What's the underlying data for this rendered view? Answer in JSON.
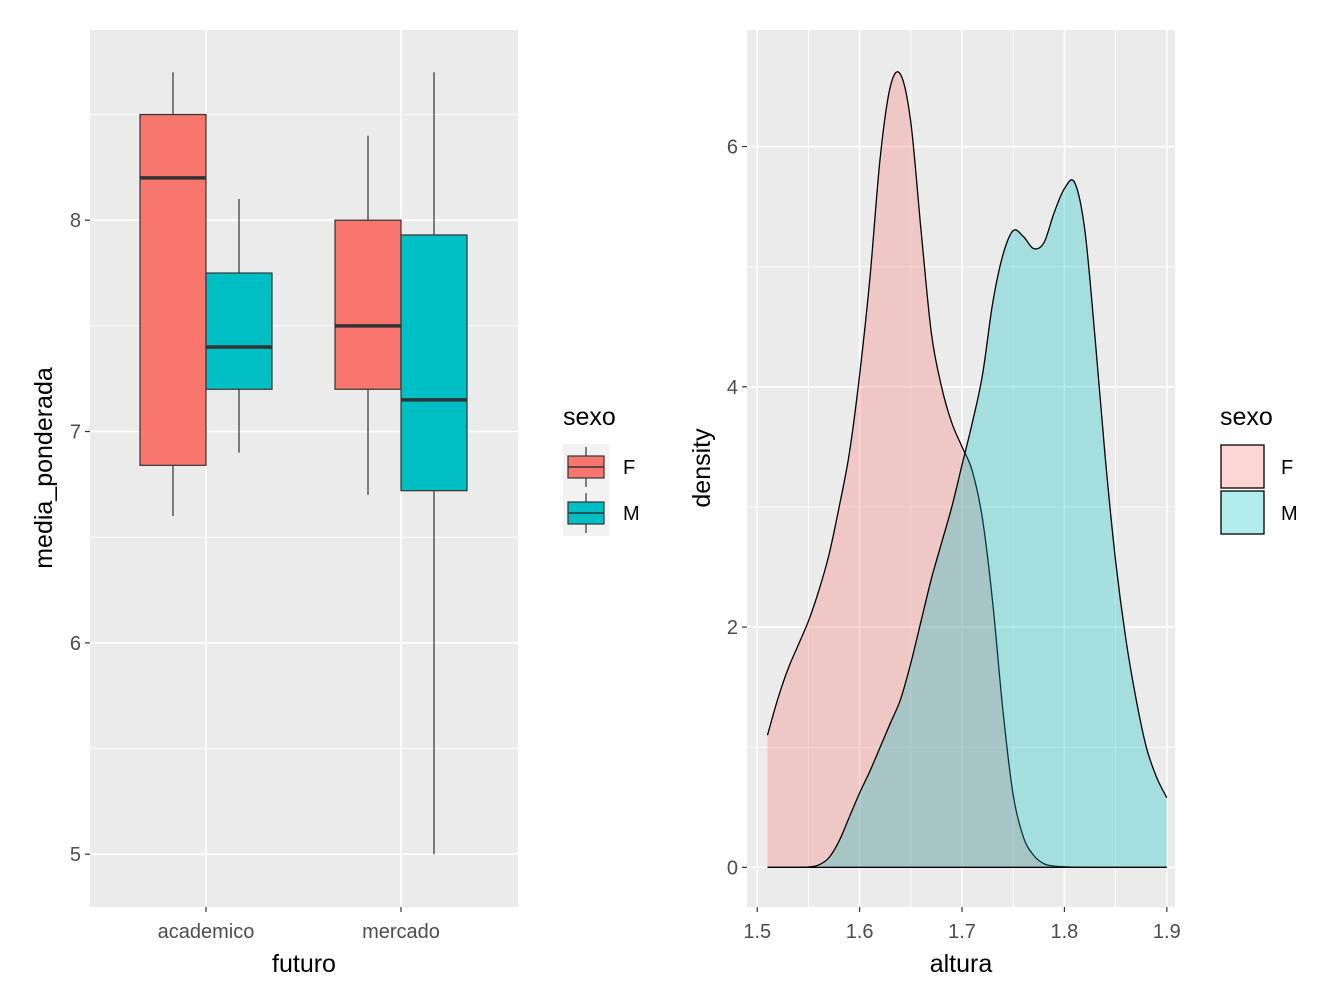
{
  "chart_data": [
    {
      "type": "boxplot",
      "xlabel": "futuro",
      "ylabel": "media_ponderada",
      "categories": [
        "academico",
        "mercado"
      ],
      "ylim": [
        4.75,
        8.9
      ],
      "yticks": [
        5,
        6,
        7,
        8
      ],
      "grid": true,
      "legend": {
        "title": "sexo",
        "position": "right",
        "entries": [
          "F",
          "M"
        ]
      },
      "colors": {
        "F": "#F8766D",
        "M": "#00BFC4"
      },
      "series": [
        {
          "name": "F",
          "boxes": [
            {
              "category": "academico",
              "lower_whisker": 6.6,
              "q1": 6.84,
              "median": 8.2,
              "q3": 8.5,
              "upper_whisker": 8.7
            },
            {
              "category": "mercado",
              "lower_whisker": 6.7,
              "q1": 7.2,
              "median": 7.5,
              "q3": 8.0,
              "upper_whisker": 8.4
            }
          ]
        },
        {
          "name": "M",
          "boxes": [
            {
              "category": "academico",
              "lower_whisker": 6.9,
              "q1": 7.2,
              "median": 7.4,
              "q3": 7.75,
              "upper_whisker": 8.1
            },
            {
              "category": "mercado",
              "lower_whisker": 5.0,
              "q1": 6.72,
              "median": 7.15,
              "q3": 7.93,
              "upper_whisker": 8.7
            }
          ]
        }
      ]
    },
    {
      "type": "area",
      "xlabel": "altura",
      "ylabel": "density",
      "xlim": [
        1.49,
        1.908
      ],
      "ylim": [
        -0.33,
        6.97
      ],
      "xticks": [
        "1.5",
        "1.6",
        "1.7",
        "1.8",
        "1.9"
      ],
      "xtick_values": [
        1.5,
        1.6,
        1.7,
        1.8,
        1.9
      ],
      "yticks": [
        0,
        2,
        4,
        6
      ],
      "grid": true,
      "legend": {
        "title": "sexo",
        "position": "right",
        "entries": [
          "F",
          "M"
        ]
      },
      "colors": {
        "F": "#F8766D",
        "M": "#00BFC4"
      },
      "fill_alpha": 0.3,
      "series": [
        {
          "name": "F",
          "x": [
            1.51,
            1.52,
            1.53,
            1.54,
            1.55,
            1.56,
            1.57,
            1.58,
            1.59,
            1.6,
            1.61,
            1.62,
            1.63,
            1.64,
            1.65,
            1.66,
            1.67,
            1.68,
            1.69,
            1.7,
            1.71,
            1.72,
            1.73,
            1.74,
            1.75,
            1.76,
            1.77,
            1.78,
            1.79,
            1.8,
            1.81,
            1.82,
            1.83,
            1.84,
            1.85,
            1.86,
            1.87,
            1.88,
            1.89,
            1.9
          ],
          "values": [
            1.1,
            1.4,
            1.65,
            1.85,
            2.05,
            2.3,
            2.6,
            3.0,
            3.45,
            4.1,
            4.9,
            5.9,
            6.5,
            6.6,
            6.2,
            5.3,
            4.45,
            4.0,
            3.7,
            3.5,
            3.3,
            2.9,
            2.2,
            1.3,
            0.6,
            0.25,
            0.1,
            0.03,
            0.01,
            0.005,
            0.002,
            0.001,
            0.0,
            0.0,
            0.0,
            0.0,
            0.0,
            0.0,
            0.0,
            0.0
          ]
        },
        {
          "name": "M",
          "x": [
            1.51,
            1.52,
            1.53,
            1.54,
            1.55,
            1.56,
            1.57,
            1.58,
            1.59,
            1.6,
            1.61,
            1.62,
            1.63,
            1.64,
            1.65,
            1.66,
            1.67,
            1.68,
            1.69,
            1.7,
            1.71,
            1.72,
            1.73,
            1.74,
            1.75,
            1.76,
            1.77,
            1.78,
            1.79,
            1.8,
            1.81,
            1.82,
            1.83,
            1.84,
            1.85,
            1.86,
            1.87,
            1.88,
            1.89,
            1.9
          ],
          "values": [
            0.0,
            0.0,
            0.0,
            0.0,
            0.003,
            0.02,
            0.08,
            0.22,
            0.42,
            0.62,
            0.8,
            1.0,
            1.2,
            1.4,
            1.7,
            2.05,
            2.4,
            2.7,
            3.0,
            3.35,
            3.7,
            4.1,
            4.7,
            5.1,
            5.3,
            5.25,
            5.15,
            5.2,
            5.45,
            5.65,
            5.7,
            5.3,
            4.4,
            3.4,
            2.55,
            1.9,
            1.4,
            1.0,
            0.75,
            0.58
          ]
        }
      ]
    }
  ]
}
